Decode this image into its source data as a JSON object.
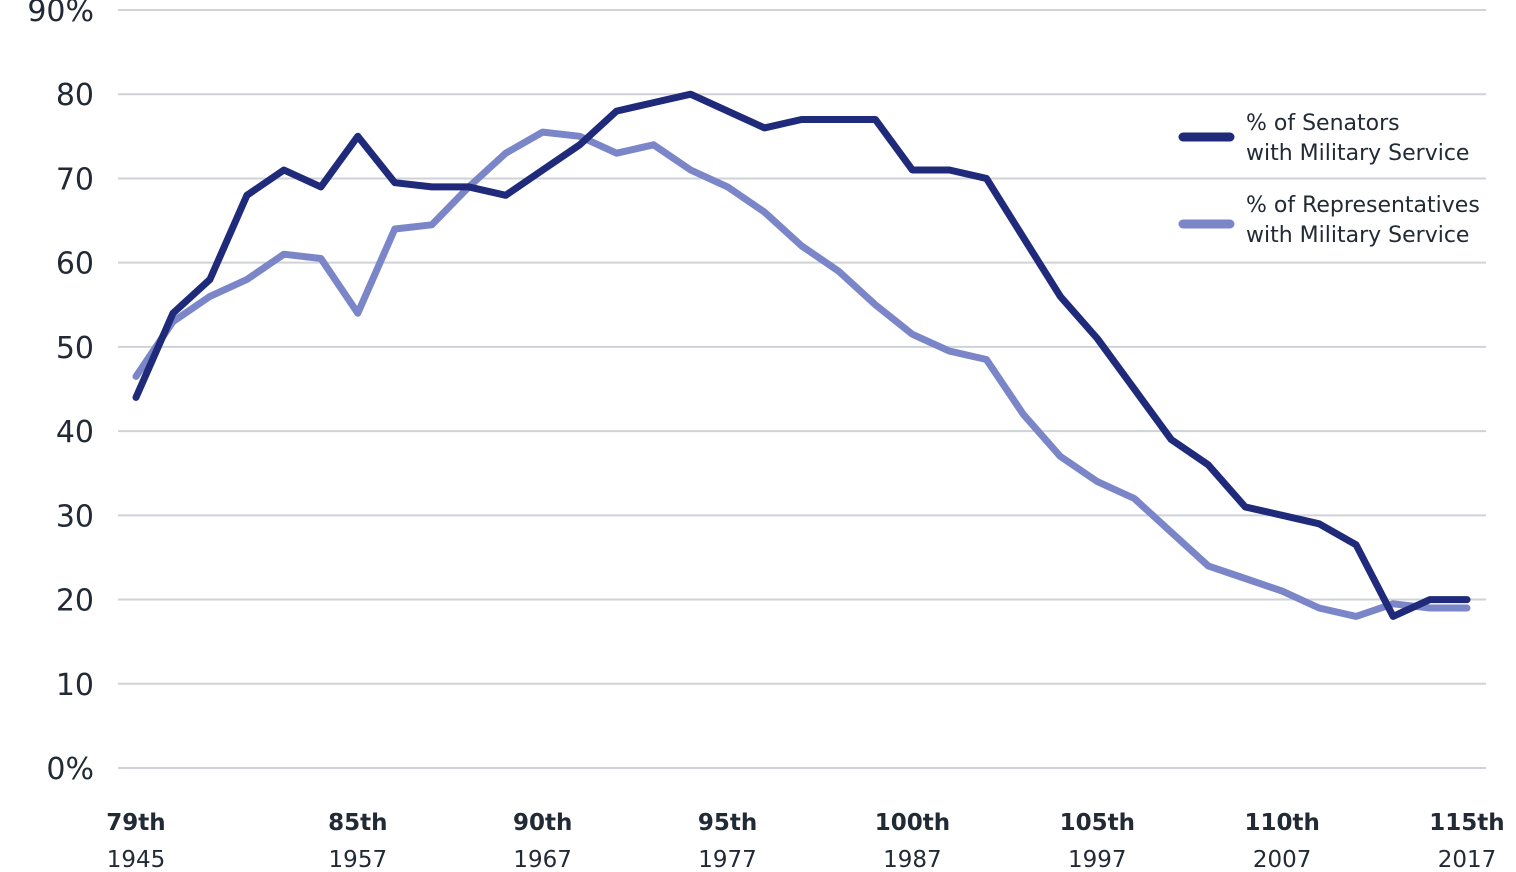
{
  "chart_data": {
    "type": "line",
    "x_categories": [
      {
        "congress": "79th",
        "year": "1945"
      },
      {
        "congress": "85th",
        "year": "1957"
      },
      {
        "congress": "90th",
        "year": "1967"
      },
      {
        "congress": "95th",
        "year": "1977"
      },
      {
        "congress": "100th",
        "year": "1987"
      },
      {
        "congress": "105th",
        "year": "1997"
      },
      {
        "congress": "110th",
        "year": "2007"
      },
      {
        "congress": "115th",
        "year": "2017"
      }
    ],
    "x_range": [
      79,
      115
    ],
    "y_ticks": [
      "0%",
      "10",
      "20",
      "30",
      "40",
      "50",
      "60",
      "70",
      "80",
      "90%"
    ],
    "ylim": [
      0,
      90
    ],
    "grid": true,
    "legend_position": "top-right",
    "series": [
      {
        "name": "% of Senators with Military Service",
        "legend_lines": [
          "% of Senators",
          "with Military Service"
        ],
        "color": "#1f2a7a",
        "x": [
          79,
          80,
          81,
          82,
          83,
          84,
          85,
          86,
          87,
          88,
          89,
          90,
          91,
          92,
          93,
          94,
          95,
          96,
          97,
          98,
          99,
          100,
          101,
          102,
          103,
          104,
          105,
          106,
          107,
          108,
          109,
          110,
          111,
          112,
          113,
          114,
          115
        ],
        "values": [
          44,
          54,
          58,
          68,
          71,
          69,
          75,
          69.5,
          69,
          69,
          68,
          71,
          74,
          78,
          79,
          80,
          78,
          76,
          77,
          77,
          77,
          71,
          71,
          70,
          63,
          56,
          51,
          45,
          39,
          36,
          31,
          30,
          29,
          26.5,
          18,
          20,
          20
        ]
      },
      {
        "name": "% of Representatives with Military Service",
        "legend_lines": [
          "% of Representatives",
          "with Military Service"
        ],
        "color": "#7b86c9",
        "x": [
          79,
          80,
          81,
          82,
          83,
          84,
          85,
          86,
          87,
          88,
          89,
          90,
          91,
          92,
          93,
          94,
          95,
          96,
          97,
          98,
          99,
          100,
          101,
          102,
          103,
          104,
          105,
          106,
          107,
          108,
          109,
          110,
          111,
          112,
          113,
          114,
          115
        ],
        "values": [
          46.5,
          53,
          56,
          58,
          61,
          60.5,
          54,
          64,
          64.5,
          69,
          73,
          75.5,
          75,
          73,
          74,
          71,
          69,
          66,
          62,
          59,
          55,
          51.5,
          49.5,
          48.5,
          42,
          37,
          34,
          32,
          28,
          24,
          22.5,
          21,
          19,
          18,
          19.5,
          19,
          19
        ]
      }
    ]
  }
}
